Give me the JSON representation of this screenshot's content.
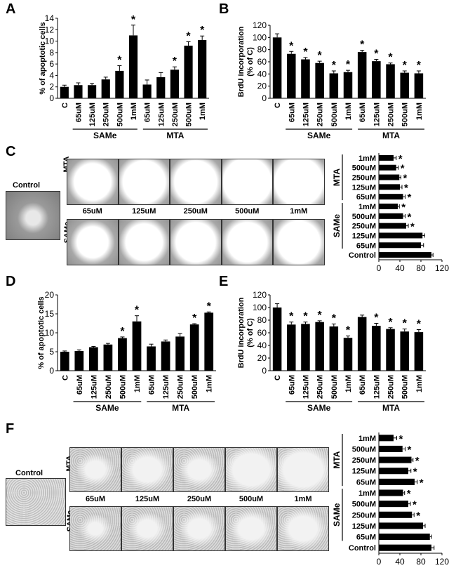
{
  "panels": {
    "A": "A",
    "B": "B",
    "C": "C",
    "D": "D",
    "E": "E",
    "F": "F"
  },
  "group_labels": [
    "SAMe",
    "MTA"
  ],
  "photo_labels": {
    "control": "Control",
    "mta": "MTA",
    "same": "SAMe",
    "doses": [
      "65uM",
      "125uM",
      "250uM",
      "500uM",
      "1mM"
    ]
  },
  "chart_data": [
    {
      "id": "A",
      "type": "bar",
      "ylabel": "% of apoptotic cells",
      "ylim": [
        0,
        14
      ],
      "yticks": [
        0,
        2,
        4,
        6,
        8,
        10,
        12,
        14
      ],
      "categories": [
        "C",
        "65uM",
        "125uM",
        "250uM",
        "500uM",
        "1mM",
        "65uM",
        "125uM",
        "250uM",
        "500uM",
        "1mM"
      ],
      "values": [
        2.0,
        2.3,
        2.3,
        3.3,
        4.8,
        11.0,
        2.4,
        3.7,
        5.0,
        9.2,
        10.2
      ],
      "errors": [
        0.3,
        0.4,
        0.3,
        0.4,
        0.9,
        1.8,
        0.8,
        0.8,
        0.5,
        0.7,
        0.7
      ],
      "significant": [
        false,
        false,
        false,
        false,
        true,
        true,
        false,
        false,
        true,
        true,
        true
      ],
      "star": "*"
    },
    {
      "id": "B",
      "type": "bar",
      "ylabel": "BrdU incorporation (% of C)",
      "ylim": [
        0,
        120
      ],
      "yticks": [
        0,
        20,
        40,
        60,
        80,
        100,
        120
      ],
      "categories": [
        "C",
        "65uM",
        "125uM",
        "250uM",
        "500uM",
        "1mM",
        "65uM",
        "125uM",
        "250uM",
        "500uM",
        "1mM"
      ],
      "values": [
        100,
        73,
        64,
        58,
        41,
        43,
        76,
        61,
        56,
        42,
        41
      ],
      "errors": [
        6,
        4,
        3,
        3,
        4,
        3,
        3,
        3,
        2,
        3,
        4
      ],
      "significant": [
        false,
        true,
        true,
        true,
        true,
        true,
        true,
        true,
        true,
        true,
        true
      ],
      "star": "*"
    },
    {
      "id": "C-bars",
      "type": "bar",
      "orientation": "horizontal",
      "xlim": [
        0,
        120
      ],
      "xticks": [
        0,
        40,
        80,
        120
      ],
      "categories": [
        "1mM",
        "500uM",
        "250uM",
        "125uM",
        "65uM",
        "1mM",
        "500uM",
        "250uM",
        "125uM",
        "65uM",
        "Control"
      ],
      "group_labels": [
        "MTA",
        "SAMe"
      ],
      "values": [
        28,
        33,
        39,
        40,
        46,
        36,
        46,
        52,
        83,
        80,
        100
      ],
      "errors": [
        5,
        4,
        3,
        4,
        4,
        3,
        4,
        4,
        4,
        5,
        3
      ],
      "significant": [
        true,
        true,
        true,
        true,
        true,
        true,
        true,
        true,
        false,
        false,
        false
      ],
      "star": "*"
    },
    {
      "id": "D",
      "type": "bar",
      "ylabel": "% of apoptotic cells",
      "ylim": [
        0,
        20
      ],
      "yticks": [
        0,
        5,
        10,
        15,
        20
      ],
      "categories": [
        "C",
        "65uM",
        "125uM",
        "250uM",
        "500uM",
        "1mM",
        "65uM",
        "125uM",
        "250uM",
        "500uM",
        "1mM"
      ],
      "values": [
        5.0,
        5.2,
        6.2,
        6.9,
        8.6,
        13.0,
        6.4,
        7.7,
        9.0,
        12.2,
        15.3
      ],
      "errors": [
        0.2,
        0.3,
        0.2,
        0.3,
        0.3,
        1.5,
        0.6,
        0.4,
        0.8,
        0.2,
        0.2
      ],
      "significant": [
        false,
        false,
        false,
        false,
        true,
        true,
        false,
        false,
        false,
        true,
        true
      ],
      "star": "*"
    },
    {
      "id": "E",
      "type": "bar",
      "ylabel": "BrdU incorporation (% of C)",
      "ylim": [
        0,
        120
      ],
      "yticks": [
        0,
        20,
        40,
        60,
        80,
        100,
        120
      ],
      "categories": [
        "C",
        "65uM",
        "125uM",
        "250uM",
        "500uM",
        "1mM",
        "65uM",
        "125uM",
        "250uM",
        "500uM",
        "1mM"
      ],
      "values": [
        100,
        73,
        74,
        77,
        70,
        52,
        85,
        71,
        66,
        62,
        61
      ],
      "errors": [
        6,
        4,
        3,
        2,
        4,
        3,
        3,
        4,
        2,
        4,
        4
      ],
      "significant": [
        false,
        true,
        true,
        true,
        true,
        true,
        false,
        true,
        true,
        true,
        true
      ],
      "star": "*"
    },
    {
      "id": "F-bars",
      "type": "bar",
      "orientation": "horizontal",
      "xlim": [
        0,
        120
      ],
      "xticks": [
        0,
        40,
        80,
        120
      ],
      "categories": [
        "1mM",
        "500uM",
        "250uM",
        "125uM",
        "65uM",
        "1mM",
        "500uM",
        "250uM",
        "125uM",
        "65uM",
        "Control"
      ],
      "group_labels": [
        "MTA",
        "SAMe"
      ],
      "values": [
        28,
        45,
        62,
        56,
        68,
        46,
        56,
        63,
        84,
        97,
        100
      ],
      "errors": [
        6,
        5,
        3,
        5,
        5,
        3,
        4,
        4,
        4,
        3,
        5
      ],
      "significant": [
        true,
        true,
        true,
        true,
        true,
        true,
        true,
        true,
        false,
        false,
        false
      ],
      "star": "*"
    }
  ]
}
